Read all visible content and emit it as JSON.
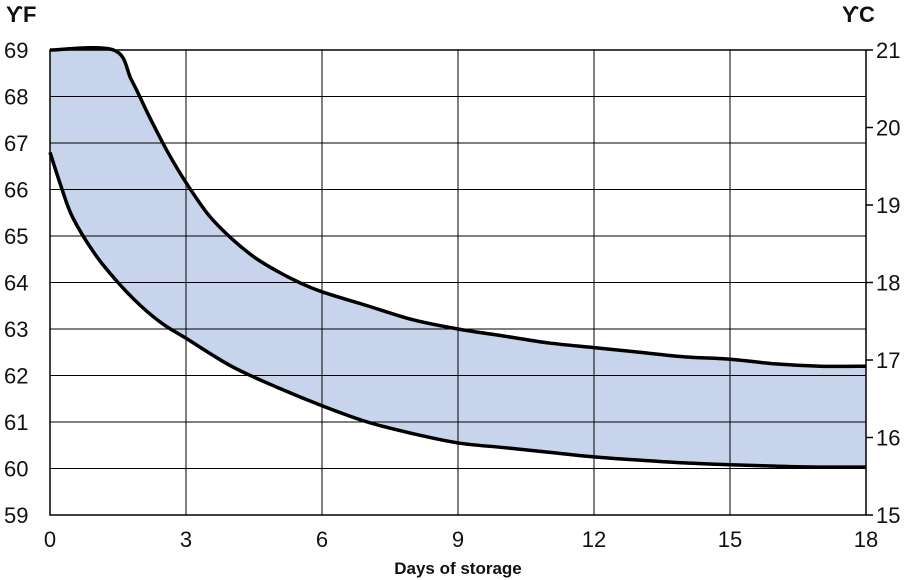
{
  "chart_data": {
    "type": "area",
    "xlabel": "Days of storage",
    "x_ticks": [
      0,
      3,
      6,
      9,
      12,
      15,
      18
    ],
    "xlim": [
      0,
      18
    ],
    "y_left": {
      "unit": "ϒF",
      "lim": [
        59,
        69
      ],
      "ticks": [
        59,
        60,
        61,
        62,
        63,
        64,
        65,
        66,
        67,
        68,
        69
      ]
    },
    "y_right": {
      "unit": "ϒC",
      "lim": [
        15,
        21
      ],
      "ticks": [
        15,
        16,
        17,
        18,
        19,
        20,
        21
      ]
    },
    "grid": true,
    "fill_color": "#c8d4ec",
    "line_color": "#000000",
    "series": [
      {
        "role": "upper",
        "x": [
          0,
          1.4,
          1.8,
          2.2,
          2.6,
          3,
          3.5,
          4,
          4.5,
          5,
          5.5,
          6,
          7,
          8,
          9,
          10,
          11,
          12,
          13,
          14,
          15,
          16,
          17,
          18
        ],
        "y": [
          69,
          69,
          68.35,
          67.55,
          66.8,
          66.15,
          65.45,
          64.95,
          64.55,
          64.25,
          64.0,
          63.8,
          63.5,
          63.2,
          63.0,
          62.85,
          62.7,
          62.6,
          62.5,
          62.4,
          62.35,
          62.25,
          62.2,
          62.2
        ]
      },
      {
        "role": "lower",
        "x": [
          0,
          0.25,
          0.5,
          1,
          1.5,
          2,
          2.5,
          3,
          4,
          5,
          6,
          7,
          8,
          9,
          10,
          11,
          12,
          13,
          14,
          15,
          16,
          17,
          18
        ],
        "y": [
          66.8,
          66.05,
          65.4,
          64.6,
          64.0,
          63.5,
          63.1,
          62.8,
          62.2,
          61.75,
          61.35,
          61.0,
          60.75,
          60.55,
          60.45,
          60.35,
          60.25,
          60.18,
          60.12,
          60.08,
          60.05,
          60.03,
          60.03
        ]
      }
    ]
  }
}
